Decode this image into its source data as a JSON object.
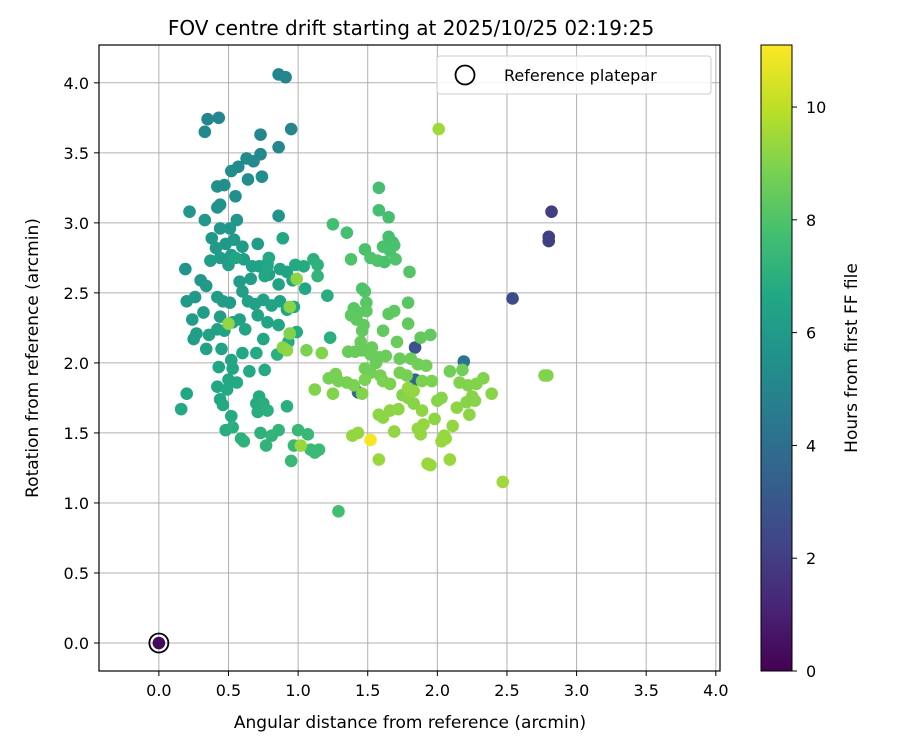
{
  "chart_data": {
    "type": "scatter",
    "title": "FOV centre drift starting at 2025/10/25 02:19:25",
    "xlabel": "Angular distance from reference (arcmin)",
    "ylabel": "Rotation from reference (arcmin)",
    "xlim": [
      -0.43,
      4.03
    ],
    "ylim": [
      -0.2,
      4.27
    ],
    "xticks": [
      "0.0",
      "0.5",
      "1.0",
      "1.5",
      "2.0",
      "2.5",
      "3.0",
      "3.5",
      "4.0"
    ],
    "yticks": [
      "0.0",
      "0.5",
      "1.0",
      "1.5",
      "2.0",
      "2.5",
      "3.0",
      "3.5",
      "4.0"
    ],
    "grid": true,
    "legend": {
      "position": "upper right",
      "entries": [
        "Reference platepar"
      ]
    },
    "colorbar": {
      "label": "Hours from first FF file",
      "min": 0,
      "max": 11.1,
      "ticks": [
        "0",
        "2",
        "4",
        "6",
        "8",
        "10"
      ],
      "colormap": "viridis"
    },
    "reference_point": {
      "x": 0.0,
      "y": 0.0,
      "c": 0.3
    },
    "points": [
      [
        2.82,
        3.08,
        2.0
      ],
      [
        2.8,
        2.9,
        2.0
      ],
      [
        2.8,
        2.87,
        2.0
      ],
      [
        2.54,
        2.46,
        2.5
      ],
      [
        1.84,
        2.11,
        2.8
      ],
      [
        1.84,
        1.88,
        3.6
      ],
      [
        1.43,
        1.79,
        3.8
      ],
      [
        2.19,
        2.01,
        4.3
      ],
      [
        0.86,
        4.06,
        5.0
      ],
      [
        0.91,
        4.04,
        5.0
      ],
      [
        0.35,
        3.74,
        5.0
      ],
      [
        0.43,
        3.75,
        5.1
      ],
      [
        0.95,
        3.67,
        5.1
      ],
      [
        0.33,
        3.65,
        5.2
      ],
      [
        0.73,
        3.63,
        5.1
      ],
      [
        0.86,
        3.54,
        5.1
      ],
      [
        0.73,
        3.49,
        5.2
      ],
      [
        0.63,
        3.46,
        5.3
      ],
      [
        0.68,
        3.44,
        5.3
      ],
      [
        0.57,
        3.4,
        5.3
      ],
      [
        0.52,
        3.37,
        5.4
      ],
      [
        0.74,
        3.33,
        5.4
      ],
      [
        0.64,
        3.31,
        5.4
      ],
      [
        0.42,
        3.26,
        5.5
      ],
      [
        0.47,
        3.27,
        5.5
      ],
      [
        0.55,
        3.19,
        5.5
      ],
      [
        0.44,
        3.13,
        5.6
      ],
      [
        0.42,
        3.11,
        5.6
      ],
      [
        0.86,
        3.05,
        5.7
      ],
      [
        0.22,
        3.08,
        5.8
      ],
      [
        0.56,
        3.02,
        5.8
      ],
      [
        0.33,
        3.02,
        5.8
      ],
      [
        0.44,
        2.96,
        5.9
      ],
      [
        0.51,
        2.96,
        5.9
      ],
      [
        0.38,
        2.89,
        5.9
      ],
      [
        0.48,
        2.85,
        5.9
      ],
      [
        0.54,
        2.88,
        6.0
      ],
      [
        0.41,
        2.82,
        6.0
      ],
      [
        0.6,
        2.83,
        6.0
      ],
      [
        0.71,
        2.85,
        6.1
      ],
      [
        0.89,
        2.89,
        6.6
      ],
      [
        0.52,
        2.77,
        6.1
      ],
      [
        0.44,
        2.75,
        6.1
      ],
      [
        0.61,
        2.74,
        6.2
      ],
      [
        0.37,
        2.73,
        6.2
      ],
      [
        0.5,
        2.7,
        6.2
      ],
      [
        0.67,
        2.69,
        6.3
      ],
      [
        0.72,
        2.69,
        6.3
      ],
      [
        0.78,
        2.71,
        6.3
      ],
      [
        0.87,
        2.67,
        6.4
      ],
      [
        0.92,
        2.65,
        6.4
      ],
      [
        0.98,
        2.7,
        6.7
      ],
      [
        1.04,
        2.69,
        6.8
      ],
      [
        1.11,
        2.74,
        7.0
      ],
      [
        0.19,
        2.67,
        5.7
      ],
      [
        0.3,
        2.59,
        5.9
      ],
      [
        0.34,
        2.55,
        6.0
      ],
      [
        0.58,
        2.58,
        6.1
      ],
      [
        0.66,
        2.6,
        6.2
      ],
      [
        0.79,
        2.63,
        6.3
      ],
      [
        0.86,
        2.56,
        6.4
      ],
      [
        0.96,
        2.59,
        6.5
      ],
      [
        1.05,
        2.53,
        6.6
      ],
      [
        1.21,
        2.48,
        6.9
      ],
      [
        1.14,
        2.7,
        7.1
      ],
      [
        0.42,
        2.47,
        6.1
      ],
      [
        0.46,
        2.44,
        6.1
      ],
      [
        0.51,
        2.43,
        6.1
      ],
      [
        0.26,
        2.47,
        6.0
      ],
      [
        0.2,
        2.44,
        6.0
      ],
      [
        0.6,
        2.51,
        6.2
      ],
      [
        0.64,
        2.44,
        6.3
      ],
      [
        0.69,
        2.42,
        6.3
      ],
      [
        0.75,
        2.45,
        6.3
      ],
      [
        0.81,
        2.41,
        6.4
      ],
      [
        0.87,
        2.44,
        6.4
      ],
      [
        0.92,
        2.38,
        6.5
      ],
      [
        0.97,
        2.4,
        6.6
      ],
      [
        0.32,
        2.36,
        6.1
      ],
      [
        0.24,
        2.31,
        6.1
      ],
      [
        0.44,
        2.33,
        6.2
      ],
      [
        0.53,
        2.29,
        6.3
      ],
      [
        0.58,
        2.31,
        6.3
      ],
      [
        0.71,
        2.34,
        6.4
      ],
      [
        0.78,
        2.29,
        6.5
      ],
      [
        0.86,
        2.27,
        6.5
      ],
      [
        1.23,
        2.18,
        7.0
      ],
      [
        0.27,
        2.21,
        6.2
      ],
      [
        0.25,
        2.17,
        6.2
      ],
      [
        0.36,
        2.2,
        6.3
      ],
      [
        0.42,
        2.24,
        6.3
      ],
      [
        0.47,
        2.23,
        6.4
      ],
      [
        0.62,
        2.24,
        6.5
      ],
      [
        0.75,
        2.17,
        6.6
      ],
      [
        0.99,
        2.22,
        6.8
      ],
      [
        0.93,
        2.15,
        6.8
      ],
      [
        0.34,
        2.1,
        6.3
      ],
      [
        0.45,
        2.1,
        6.4
      ],
      [
        0.52,
        2.02,
        6.5
      ],
      [
        0.6,
        2.07,
        6.6
      ],
      [
        0.7,
        2.07,
        6.7
      ],
      [
        0.85,
        2.06,
        7.0
      ],
      [
        0.43,
        1.97,
        6.5
      ],
      [
        0.53,
        1.96,
        6.6
      ],
      [
        0.65,
        1.94,
        6.7
      ],
      [
        0.76,
        1.95,
        6.8
      ],
      [
        0.5,
        1.88,
        6.6
      ],
      [
        0.56,
        1.86,
        6.7
      ],
      [
        0.42,
        1.83,
        6.6
      ],
      [
        0.49,
        1.81,
        6.7
      ],
      [
        0.72,
        1.76,
        6.8
      ],
      [
        0.2,
        1.78,
        6.6
      ],
      [
        0.44,
        1.74,
        6.6
      ],
      [
        0.46,
        1.7,
        6.7
      ],
      [
        0.7,
        1.71,
        6.8
      ],
      [
        0.75,
        1.71,
        6.9
      ],
      [
        0.92,
        1.69,
        7.0
      ],
      [
        0.52,
        1.62,
        6.8
      ],
      [
        0.71,
        1.65,
        6.9
      ],
      [
        0.78,
        1.66,
        7.0
      ],
      [
        0.16,
        1.67,
        6.7
      ],
      [
        0.48,
        1.52,
        6.9
      ],
      [
        0.53,
        1.54,
        7.0
      ],
      [
        0.73,
        1.5,
        7.1
      ],
      [
        0.86,
        1.52,
        7.2
      ],
      [
        1.0,
        1.52,
        7.4
      ],
      [
        1.07,
        1.49,
        7.4
      ],
      [
        0.81,
        1.48,
        7.2
      ],
      [
        0.59,
        1.46,
        7.1
      ],
      [
        0.61,
        1.44,
        7.1
      ],
      [
        0.77,
        1.41,
        7.2
      ],
      [
        0.97,
        1.41,
        7.4
      ],
      [
        1.09,
        1.38,
        7.5
      ],
      [
        1.12,
        1.36,
        7.5
      ],
      [
        1.15,
        1.38,
        7.5
      ],
      [
        0.95,
        1.3,
        7.4
      ],
      [
        0.79,
        2.75,
        6.7
      ],
      [
        0.78,
        2.69,
        6.6
      ],
      [
        0.55,
        2.75,
        6.5
      ],
      [
        0.76,
        2.62,
        6.6
      ],
      [
        1.14,
        2.62,
        7.2
      ],
      [
        1.29,
        0.94,
        7.7
      ],
      [
        1.58,
        3.25,
        7.8
      ],
      [
        1.58,
        3.09,
        7.8
      ],
      [
        1.65,
        3.04,
        7.8
      ],
      [
        1.25,
        2.99,
        7.7
      ],
      [
        1.65,
        2.9,
        7.8
      ],
      [
        1.35,
        2.93,
        7.8
      ],
      [
        1.68,
        2.86,
        7.8
      ],
      [
        1.48,
        2.81,
        7.9
      ],
      [
        1.61,
        2.83,
        7.9
      ],
      [
        1.69,
        2.84,
        7.9
      ],
      [
        1.66,
        2.8,
        7.9
      ],
      [
        1.52,
        2.75,
        8.0
      ],
      [
        1.57,
        2.73,
        8.0
      ],
      [
        1.38,
        2.74,
        8.0
      ],
      [
        1.7,
        2.74,
        8.0
      ],
      [
        1.8,
        2.65,
        8.1
      ],
      [
        1.48,
        2.51,
        8.1
      ],
      [
        1.79,
        2.43,
        8.2
      ],
      [
        1.49,
        2.43,
        8.2
      ],
      [
        1.4,
        2.39,
        8.2
      ],
      [
        1.43,
        2.36,
        8.2
      ],
      [
        1.49,
        2.37,
        8.3
      ],
      [
        1.38,
        2.34,
        8.3
      ],
      [
        1.65,
        2.35,
        8.3
      ],
      [
        1.69,
        2.37,
        8.3
      ],
      [
        1.42,
        2.31,
        8.3
      ],
      [
        1.47,
        2.27,
        8.4
      ],
      [
        1.79,
        2.28,
        8.4
      ],
      [
        1.46,
        2.23,
        8.4
      ],
      [
        1.61,
        2.23,
        8.4
      ],
      [
        1.95,
        2.2,
        8.4
      ],
      [
        1.88,
        2.18,
        8.4
      ],
      [
        1.71,
        2.15,
        8.5
      ],
      [
        1.45,
        2.15,
        8.5
      ],
      [
        1.53,
        2.11,
        8.5
      ],
      [
        1.36,
        2.08,
        8.5
      ],
      [
        1.41,
        2.08,
        8.5
      ],
      [
        1.46,
        2.09,
        8.5
      ],
      [
        1.52,
        2.06,
        8.6
      ],
      [
        1.58,
        2.04,
        8.6
      ],
      [
        1.63,
        2.05,
        8.6
      ],
      [
        1.73,
        2.03,
        8.6
      ],
      [
        1.81,
        2.03,
        8.6
      ],
      [
        1.56,
        2.0,
        8.6
      ],
      [
        1.86,
        1.99,
        8.7
      ],
      [
        1.92,
        1.98,
        8.7
      ],
      [
        2.09,
        1.94,
        8.7
      ],
      [
        2.18,
        1.95,
        8.7
      ],
      [
        1.48,
        1.96,
        8.7
      ],
      [
        1.52,
        1.93,
        8.7
      ],
      [
        1.59,
        1.91,
        8.8
      ],
      [
        1.73,
        1.93,
        8.8
      ],
      [
        1.78,
        1.91,
        8.8
      ],
      [
        1.27,
        1.92,
        8.8
      ],
      [
        1.22,
        1.89,
        8.8
      ],
      [
        1.29,
        1.87,
        8.8
      ],
      [
        1.35,
        1.86,
        8.8
      ],
      [
        1.4,
        1.84,
        8.9
      ],
      [
        1.48,
        1.88,
        8.9
      ],
      [
        1.61,
        1.87,
        8.9
      ],
      [
        1.66,
        1.85,
        8.9
      ],
      [
        1.89,
        1.87,
        8.9
      ],
      [
        1.96,
        1.87,
        8.9
      ],
      [
        2.16,
        1.86,
        9.0
      ],
      [
        2.22,
        1.84,
        9.0
      ],
      [
        2.28,
        1.85,
        9.0
      ],
      [
        2.33,
        1.89,
        9.0
      ],
      [
        2.77,
        1.91,
        9.0
      ],
      [
        2.79,
        1.91,
        9.0
      ],
      [
        1.12,
        1.81,
        9.0
      ],
      [
        1.25,
        1.78,
        9.0
      ],
      [
        1.46,
        1.78,
        9.0
      ],
      [
        1.75,
        1.77,
        9.0
      ],
      [
        1.79,
        1.75,
        9.1
      ],
      [
        1.83,
        1.71,
        9.1
      ],
      [
        2.0,
        1.73,
        9.1
      ],
      [
        2.03,
        1.75,
        9.1
      ],
      [
        2.25,
        1.76,
        9.1
      ],
      [
        2.39,
        1.78,
        9.1
      ],
      [
        2.27,
        1.73,
        9.1
      ],
      [
        2.21,
        1.72,
        9.1
      ],
      [
        2.14,
        1.68,
        9.2
      ],
      [
        1.89,
        1.66,
        9.2
      ],
      [
        1.72,
        1.67,
        9.2
      ],
      [
        1.66,
        1.66,
        9.2
      ],
      [
        1.58,
        1.63,
        9.2
      ],
      [
        1.61,
        1.61,
        9.2
      ],
      [
        1.98,
        1.6,
        9.2
      ],
      [
        2.23,
        1.63,
        9.2
      ],
      [
        2.11,
        1.55,
        9.3
      ],
      [
        1.9,
        1.56,
        9.3
      ],
      [
        1.86,
        1.53,
        9.3
      ],
      [
        1.69,
        1.51,
        9.3
      ],
      [
        1.88,
        1.49,
        9.3
      ],
      [
        1.43,
        1.5,
        9.3
      ],
      [
        1.39,
        1.48,
        9.3
      ],
      [
        2.05,
        1.48,
        9.3
      ],
      [
        2.06,
        1.46,
        9.4
      ],
      [
        2.03,
        1.44,
        9.4
      ],
      [
        1.02,
        1.41,
        9.4
      ],
      [
        1.58,
        1.31,
        9.4
      ],
      [
        2.09,
        1.31,
        9.4
      ],
      [
        1.93,
        1.28,
        9.4
      ],
      [
        1.95,
        1.27,
        9.4
      ],
      [
        2.47,
        1.15,
        9.5
      ],
      [
        1.46,
        2.53,
        8.0
      ],
      [
        1.62,
        2.72,
        7.9
      ],
      [
        1.06,
        2.09,
        8.9
      ],
      [
        1.17,
        2.07,
        9.0
      ],
      [
        0.94,
        2.21,
        9.0
      ],
      [
        0.89,
        2.11,
        9.1
      ],
      [
        0.92,
        2.09,
        9.2
      ],
      [
        0.94,
        2.4,
        9.1
      ],
      [
        0.5,
        2.28,
        9.3
      ],
      [
        0.99,
        2.6,
        9.2
      ],
      [
        1.79,
        1.82,
        9.3
      ],
      [
        1.83,
        1.8,
        9.3
      ],
      [
        2.01,
        3.67,
        9.5
      ],
      [
        1.52,
        1.45,
        11.0
      ]
    ]
  }
}
